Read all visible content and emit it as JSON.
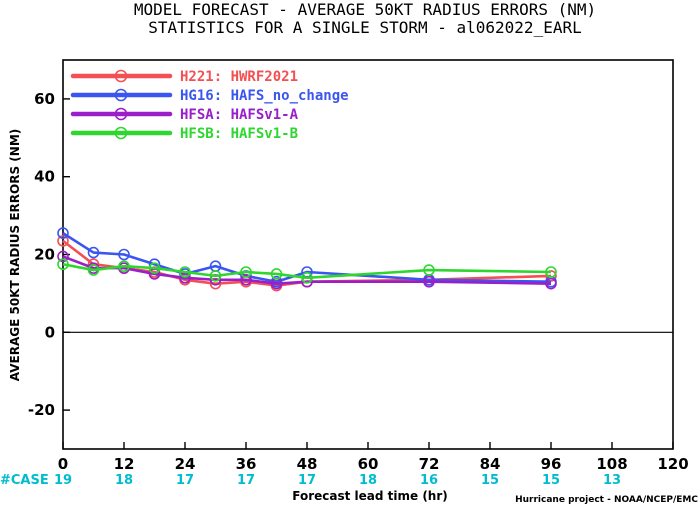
{
  "chart_data": {
    "type": "line",
    "title": "MODEL FORECAST - AVERAGE 50KT RADIUS ERRORS (NM)",
    "subtitle": "STATISTICS FOR A SINGLE STORM - al062022_EARL",
    "xlabel": "Forecast lead time (hr)",
    "ylabel": "AVERAGE 50KT RADIUS ERRORS (NM)",
    "xlim": [
      0,
      120
    ],
    "ylim": [
      -30,
      70
    ],
    "xticks": [
      0,
      12,
      24,
      36,
      48,
      60,
      72,
      84,
      96,
      108,
      120
    ],
    "yticks": [
      -20,
      0,
      20,
      40,
      60
    ],
    "grid": false,
    "legend_position": "top-left",
    "zero_line": true,
    "case_label": "#CASE",
    "case_color": "#00bcd0",
    "cases": [
      {
        "x": 0,
        "n": "19"
      },
      {
        "x": 12,
        "n": "18"
      },
      {
        "x": 24,
        "n": "17"
      },
      {
        "x": 36,
        "n": "17"
      },
      {
        "x": 48,
        "n": "17"
      },
      {
        "x": 60,
        "n": "18"
      },
      {
        "x": 72,
        "n": "16"
      },
      {
        "x": 84,
        "n": "15"
      },
      {
        "x": 96,
        "n": "15"
      },
      {
        "x": 108,
        "n": "13"
      }
    ],
    "series": [
      {
        "name": "H221: HWRF2021",
        "color": "#f44f52",
        "x": [
          0,
          6,
          12,
          18,
          24,
          30,
          36,
          42,
          48,
          72,
          96
        ],
        "y": [
          23.5,
          17.5,
          16.5,
          15.5,
          13.5,
          12.5,
          13.0,
          12.0,
          13.0,
          13.5,
          14.5
        ]
      },
      {
        "name": "HG16: HAFS_no_change",
        "color": "#3b56f0",
        "x": [
          0,
          6,
          12,
          18,
          24,
          30,
          36,
          42,
          48,
          72,
          96
        ],
        "y": [
          25.5,
          20.5,
          20.0,
          17.5,
          15.0,
          17.0,
          14.5,
          13.0,
          15.5,
          13.5,
          13.0
        ]
      },
      {
        "name": "HFSA: HAFSv1-A",
        "color": "#9b1fc9",
        "x": [
          0,
          6,
          12,
          18,
          24,
          30,
          36,
          42,
          48,
          72,
          96
        ],
        "y": [
          19.5,
          16.5,
          16.5,
          15.0,
          14.0,
          13.5,
          13.5,
          12.5,
          13.0,
          13.0,
          12.5
        ]
      },
      {
        "name": "HFSB: HAFSv1-B",
        "color": "#2fd62f",
        "x": [
          0,
          6,
          12,
          18,
          24,
          30,
          36,
          42,
          48,
          72,
          96
        ],
        "y": [
          17.5,
          16.0,
          17.0,
          16.5,
          15.5,
          14.5,
          15.5,
          15.0,
          14.0,
          16.0,
          15.5
        ]
      }
    ]
  },
  "credit": "Hurricane project - NOAA/NCEP/EMC"
}
